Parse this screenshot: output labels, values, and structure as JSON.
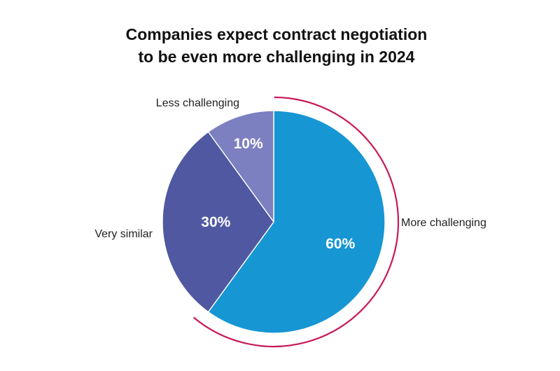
{
  "chart_data": {
    "type": "pie",
    "title_lines": [
      "Companies expect contract negotiation",
      "to be even more challenging in 2024"
    ],
    "slices": [
      {
        "label": "More challenging",
        "value": 60,
        "value_label": "60%",
        "color": "#1796d4",
        "label_color": "#c8195a"
      },
      {
        "label": "Very similar",
        "value": 30,
        "value_label": "30%",
        "color": "#4f58a1",
        "label_color": "#222222"
      },
      {
        "label": "Less challenging",
        "value": 10,
        "value_label": "10%",
        "color": "#7c80c1",
        "label_color": "#222222"
      }
    ],
    "highlight_color": "#c8195a",
    "start_angle_deg": 0,
    "direction": "clockwise"
  }
}
